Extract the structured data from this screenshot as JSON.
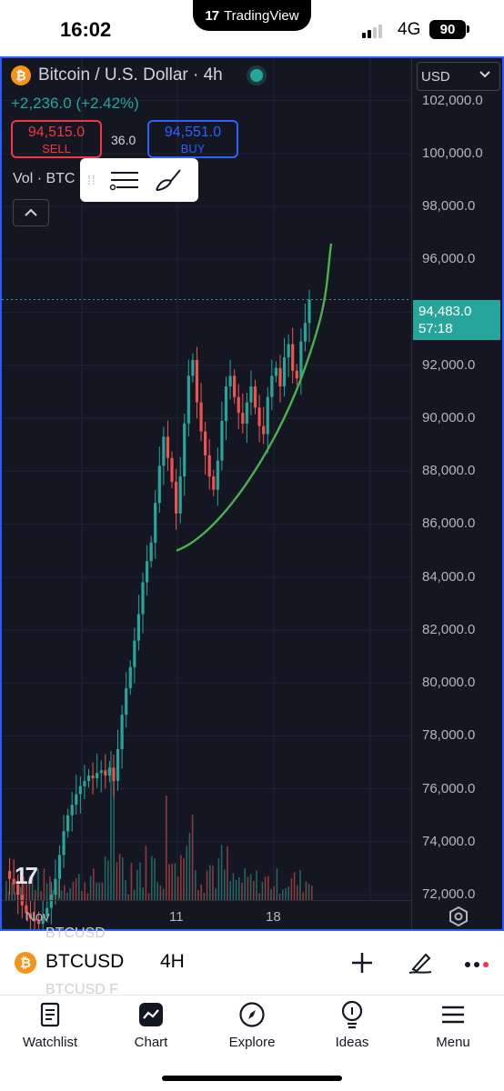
{
  "status_bar": {
    "time": "16:02",
    "app_badge": "TradingView",
    "network": "4G",
    "battery": "90"
  },
  "header": {
    "symbol_title": "Bitcoin / U.S. Dollar · 4h",
    "change": "+2,236.0 (+2.42%)",
    "sell_price": "94,515.0",
    "sell_label": "SELL",
    "spread": "36.0",
    "buy_price": "94,551.0",
    "buy_label": "BUY",
    "volume_label": "Vol · BTC",
    "currency": "USD"
  },
  "colors": {
    "up": "#26a69a",
    "down": "#ef5350",
    "accent": "#2962ff",
    "curve": "#4caf50",
    "btc": "#f7931a"
  },
  "price_axis": {
    "ticks": [
      "102,000.0",
      "100,000.0",
      "98,000.0",
      "96,000.0",
      "92,000.0",
      "90,000.0",
      "88,000.0",
      "86,000.0",
      "84,000.0",
      "82,000.0",
      "80,000.0",
      "78,000.0",
      "76,000.0",
      "74,000.0",
      "72,000.0"
    ],
    "last_price": "94,483.0",
    "countdown": "57:18"
  },
  "time_axis": {
    "ticks": [
      "Nov",
      "11",
      "18"
    ]
  },
  "chart_data": {
    "type": "candlestick",
    "ylim": [
      70700,
      103600
    ],
    "yticks": [
      102000,
      100000,
      98000,
      96000,
      94000,
      92000,
      90000,
      88000,
      86000,
      84000,
      82000,
      80000,
      78000,
      76000,
      74000,
      72000
    ],
    "last_price": 94483,
    "annotation": "hand-drawn green upward curve under price from ~85,000 to ~96,600",
    "close_path": [
      72900,
      72600,
      72400,
      72000,
      71600,
      71300,
      71100,
      71000,
      70900,
      71200,
      71500,
      72000,
      72600,
      73500,
      74400,
      75000,
      75400,
      75800,
      76100,
      76300,
      76500,
      76400,
      76600,
      76700,
      76500,
      76800,
      76300,
      77500,
      78800,
      79800,
      80600,
      81600,
      82600,
      83800,
      84600,
      85300,
      86800,
      88200,
      89300,
      88500,
      87600,
      86400,
      87800,
      89800,
      91600,
      92200,
      90600,
      89500,
      88600,
      87800,
      87300,
      88400,
      89900,
      91200,
      91600,
      90800,
      90200,
      89800,
      90600,
      91200,
      90400,
      89700,
      89400,
      90800,
      91600,
      91900,
      91200,
      92300,
      92800,
      91800,
      91500,
      92900,
      93600,
      94483
    ]
  },
  "bottom_bar": {
    "ghost_top": "BTCUSD",
    "ghost_bottom": "BTCUSD F",
    "symbol": "BTCUSD",
    "interval": "4H"
  },
  "tabs": [
    {
      "label": "Watchlist",
      "icon": "watchlist-icon"
    },
    {
      "label": "Chart",
      "icon": "chart-icon"
    },
    {
      "label": "Explore",
      "icon": "compass-icon"
    },
    {
      "label": "Ideas",
      "icon": "lightbulb-icon"
    },
    {
      "label": "Menu",
      "icon": "menu-icon"
    }
  ]
}
